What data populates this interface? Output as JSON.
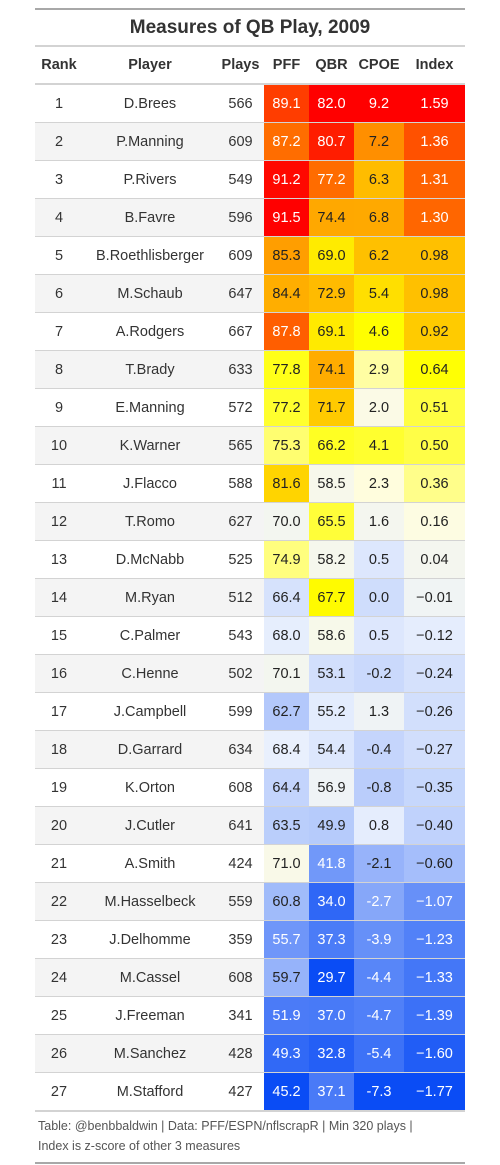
{
  "title": "Measures of QB Play, 2009",
  "columns": [
    "Rank",
    "Player",
    "Plays",
    "PFF",
    "QBR",
    "CPOE",
    "Index"
  ],
  "footer": {
    "line1": "Table: @benbbaldwin | Data: PFF/ESPN/nflscrapR | Min 320 plays |",
    "line2": "Index is z-score of other 3 measures"
  },
  "chart_data": {
    "type": "table",
    "title": "Measures of QB Play, 2009",
    "columns": [
      "Rank",
      "Player",
      "Plays",
      "PFF",
      "QBR",
      "CPOE",
      "Index"
    ],
    "rows": [
      {
        "rank": "1",
        "player": "D.Brees",
        "plays": "566",
        "pff": "89.1",
        "qbr": "82.0",
        "cpoe": "9.2",
        "index": "1.59"
      },
      {
        "rank": "2",
        "player": "P.Manning",
        "plays": "609",
        "pff": "87.2",
        "qbr": "80.7",
        "cpoe": "7.2",
        "index": "1.36"
      },
      {
        "rank": "3",
        "player": "P.Rivers",
        "plays": "549",
        "pff": "91.2",
        "qbr": "77.2",
        "cpoe": "6.3",
        "index": "1.31"
      },
      {
        "rank": "4",
        "player": "B.Favre",
        "plays": "596",
        "pff": "91.5",
        "qbr": "74.4",
        "cpoe": "6.8",
        "index": "1.30"
      },
      {
        "rank": "5",
        "player": "B.Roethlisberger",
        "plays": "609",
        "pff": "85.3",
        "qbr": "69.0",
        "cpoe": "6.2",
        "index": "0.98"
      },
      {
        "rank": "6",
        "player": "M.Schaub",
        "plays": "647",
        "pff": "84.4",
        "qbr": "72.9",
        "cpoe": "5.4",
        "index": "0.98"
      },
      {
        "rank": "7",
        "player": "A.Rodgers",
        "plays": "667",
        "pff": "87.8",
        "qbr": "69.1",
        "cpoe": "4.6",
        "index": "0.92"
      },
      {
        "rank": "8",
        "player": "T.Brady",
        "plays": "633",
        "pff": "77.8",
        "qbr": "74.1",
        "cpoe": "2.9",
        "index": "0.64"
      },
      {
        "rank": "9",
        "player": "E.Manning",
        "plays": "572",
        "pff": "77.2",
        "qbr": "71.7",
        "cpoe": "2.0",
        "index": "0.51"
      },
      {
        "rank": "10",
        "player": "K.Warner",
        "plays": "565",
        "pff": "75.3",
        "qbr": "66.2",
        "cpoe": "4.1",
        "index": "0.50"
      },
      {
        "rank": "11",
        "player": "J.Flacco",
        "plays": "588",
        "pff": "81.6",
        "qbr": "58.5",
        "cpoe": "2.3",
        "index": "0.36"
      },
      {
        "rank": "12",
        "player": "T.Romo",
        "plays": "627",
        "pff": "70.0",
        "qbr": "65.5",
        "cpoe": "1.6",
        "index": "0.16"
      },
      {
        "rank": "13",
        "player": "D.McNabb",
        "plays": "525",
        "pff": "74.9",
        "qbr": "58.2",
        "cpoe": "0.5",
        "index": "0.04"
      },
      {
        "rank": "14",
        "player": "M.Ryan",
        "plays": "512",
        "pff": "66.4",
        "qbr": "67.7",
        "cpoe": "0.0",
        "index": "−0.01"
      },
      {
        "rank": "15",
        "player": "C.Palmer",
        "plays": "543",
        "pff": "68.0",
        "qbr": "58.6",
        "cpoe": "0.5",
        "index": "−0.12"
      },
      {
        "rank": "16",
        "player": "C.Henne",
        "plays": "502",
        "pff": "70.1",
        "qbr": "53.1",
        "cpoe": "-0.2",
        "index": "−0.24"
      },
      {
        "rank": "17",
        "player": "J.Campbell",
        "plays": "599",
        "pff": "62.7",
        "qbr": "55.2",
        "cpoe": "1.3",
        "index": "−0.26"
      },
      {
        "rank": "18",
        "player": "D.Garrard",
        "plays": "634",
        "pff": "68.4",
        "qbr": "54.4",
        "cpoe": "-0.4",
        "index": "−0.27"
      },
      {
        "rank": "19",
        "player": "K.Orton",
        "plays": "608",
        "pff": "64.4",
        "qbr": "56.9",
        "cpoe": "-0.8",
        "index": "−0.35"
      },
      {
        "rank": "20",
        "player": "J.Cutler",
        "plays": "641",
        "pff": "63.5",
        "qbr": "49.9",
        "cpoe": "0.8",
        "index": "−0.40"
      },
      {
        "rank": "21",
        "player": "A.Smith",
        "plays": "424",
        "pff": "71.0",
        "qbr": "41.8",
        "cpoe": "-2.1",
        "index": "−0.60"
      },
      {
        "rank": "22",
        "player": "M.Hasselbeck",
        "plays": "559",
        "pff": "60.8",
        "qbr": "34.0",
        "cpoe": "-2.7",
        "index": "−1.07"
      },
      {
        "rank": "23",
        "player": "J.Delhomme",
        "plays": "359",
        "pff": "55.7",
        "qbr": "37.3",
        "cpoe": "-3.9",
        "index": "−1.23"
      },
      {
        "rank": "24",
        "player": "M.Cassel",
        "plays": "608",
        "pff": "59.7",
        "qbr": "29.7",
        "cpoe": "-4.4",
        "index": "−1.33"
      },
      {
        "rank": "25",
        "player": "J.Freeman",
        "plays": "341",
        "pff": "51.9",
        "qbr": "37.0",
        "cpoe": "-4.7",
        "index": "−1.39"
      },
      {
        "rank": "26",
        "player": "M.Sanchez",
        "plays": "428",
        "pff": "49.3",
        "qbr": "32.8",
        "cpoe": "-5.4",
        "index": "−1.60"
      },
      {
        "rank": "27",
        "player": "M.Stafford",
        "plays": "427",
        "pff": "45.2",
        "qbr": "37.1",
        "cpoe": "-7.3",
        "index": "−1.77"
      }
    ],
    "color_scale": {
      "low": "#0a4cf5",
      "mid_low": "#e9f0fd",
      "mid": "#fffde0",
      "mid_high": "#ffff00",
      "high_mid": "#ffa500",
      "high": "#ff0000"
    }
  }
}
